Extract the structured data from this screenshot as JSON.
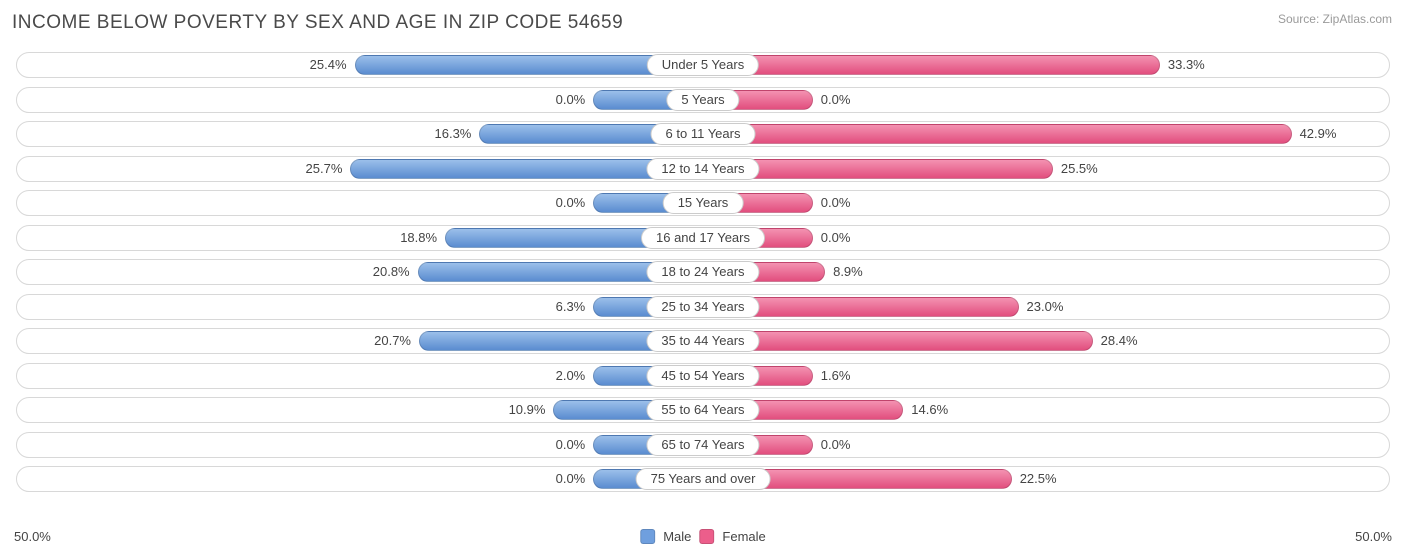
{
  "title": "INCOME BELOW POVERTY BY SEX AND AGE IN ZIP CODE 54659",
  "source": "Source: ZipAtlas.com",
  "chart": {
    "type": "bar",
    "orientation": "diverging-horizontal",
    "axis_max_pct": 50.0,
    "axis_label_left": "50.0%",
    "axis_label_right": "50.0%",
    "min_bar_pct": 8.0,
    "bar_border": "rgba(0,0,0,0.15)",
    "row_border_color": "#d8d8d8",
    "background_color": "#ffffff",
    "label_fontsize": 13,
    "title_fontsize": 19,
    "male": {
      "label": "Male",
      "fill": "#6f9fde",
      "grad_light": "#9bbfea",
      "grad_dark": "#5a8cd0"
    },
    "female": {
      "label": "Female",
      "fill": "#ec5e8b",
      "grad_light": "#f492b1",
      "grad_dark": "#e24e7e"
    },
    "rows": [
      {
        "category": "Under 5 Years",
        "male_pct": 25.4,
        "female_pct": 33.3,
        "male_label": "25.4%",
        "female_label": "33.3%"
      },
      {
        "category": "5 Years",
        "male_pct": 0.0,
        "female_pct": 0.0,
        "male_label": "0.0%",
        "female_label": "0.0%"
      },
      {
        "category": "6 to 11 Years",
        "male_pct": 16.3,
        "female_pct": 42.9,
        "male_label": "16.3%",
        "female_label": "42.9%"
      },
      {
        "category": "12 to 14 Years",
        "male_pct": 25.7,
        "female_pct": 25.5,
        "male_label": "25.7%",
        "female_label": "25.5%"
      },
      {
        "category": "15 Years",
        "male_pct": 0.0,
        "female_pct": 0.0,
        "male_label": "0.0%",
        "female_label": "0.0%"
      },
      {
        "category": "16 and 17 Years",
        "male_pct": 18.8,
        "female_pct": 0.0,
        "male_label": "18.8%",
        "female_label": "0.0%"
      },
      {
        "category": "18 to 24 Years",
        "male_pct": 20.8,
        "female_pct": 8.9,
        "male_label": "20.8%",
        "female_label": "8.9%"
      },
      {
        "category": "25 to 34 Years",
        "male_pct": 6.3,
        "female_pct": 23.0,
        "male_label": "6.3%",
        "female_label": "23.0%"
      },
      {
        "category": "35 to 44 Years",
        "male_pct": 20.7,
        "female_pct": 28.4,
        "male_label": "20.7%",
        "female_label": "28.4%"
      },
      {
        "category": "45 to 54 Years",
        "male_pct": 2.0,
        "female_pct": 1.6,
        "male_label": "2.0%",
        "female_label": "1.6%"
      },
      {
        "category": "55 to 64 Years",
        "male_pct": 10.9,
        "female_pct": 14.6,
        "male_label": "10.9%",
        "female_label": "14.6%"
      },
      {
        "category": "65 to 74 Years",
        "male_pct": 0.0,
        "female_pct": 0.0,
        "male_label": "0.0%",
        "female_label": "0.0%"
      },
      {
        "category": "75 Years and over",
        "male_pct": 0.0,
        "female_pct": 22.5,
        "male_label": "0.0%",
        "female_label": "22.5%"
      }
    ]
  }
}
